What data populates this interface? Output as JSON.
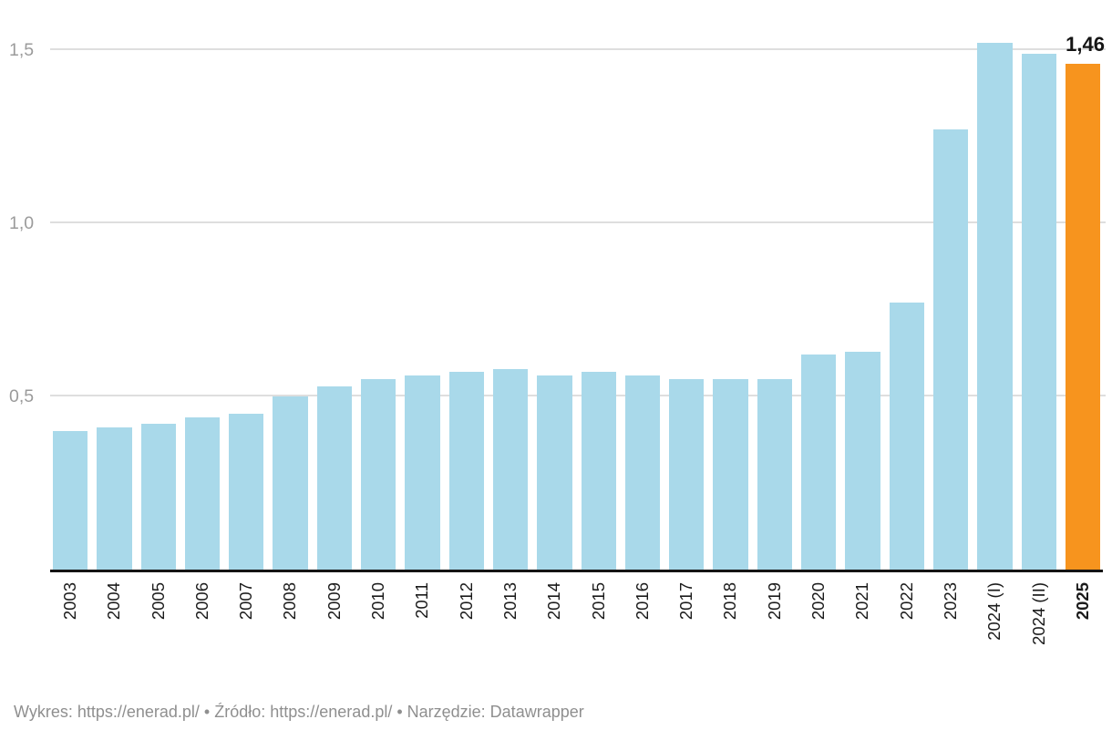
{
  "chart_data": {
    "type": "bar",
    "title": "",
    "xlabel": "",
    "ylabel": "",
    "categories": [
      "2003",
      "2004",
      "2005",
      "2006",
      "2007",
      "2008",
      "2009",
      "2010",
      "2011",
      "2012",
      "2013",
      "2014",
      "2015",
      "2016",
      "2017",
      "2018",
      "2019",
      "2020",
      "2021",
      "2022",
      "2023",
      "2024 (I)",
      "2024 (II)",
      "2025"
    ],
    "values": [
      0.4,
      0.41,
      0.42,
      0.44,
      0.45,
      0.5,
      0.53,
      0.55,
      0.56,
      0.57,
      0.58,
      0.56,
      0.57,
      0.56,
      0.55,
      0.55,
      0.55,
      0.62,
      0.63,
      0.77,
      1.27,
      1.52,
      1.49,
      1.46
    ],
    "highlight_index": 23,
    "bold_category_index": 23,
    "annotation": {
      "index": 23,
      "label": "1,46"
    },
    "yticks": [
      {
        "value": 0.5,
        "label": "0,5"
      },
      {
        "value": 1.0,
        "label": "1,0"
      },
      {
        "value": 1.5,
        "label": "1,5"
      }
    ],
    "ylim": [
      0,
      1.58
    ],
    "grid": "horizontal",
    "legend": "none",
    "bar_color": "#a9d9ea",
    "highlight_color": "#f7941e"
  },
  "colors": {
    "background": "#ffffff",
    "grid": "#dedede",
    "axis": "#141414",
    "ytick_text": "#9b9b9b",
    "xtick_text": "#1a1a1a",
    "annotation_text": "#141414",
    "footer_text": "#8f8f8f"
  },
  "footer": {
    "text": "Wykres: https://enerad.pl/ • Źródło: https://enerad.pl/ • Narzędzie: Datawrapper"
  }
}
